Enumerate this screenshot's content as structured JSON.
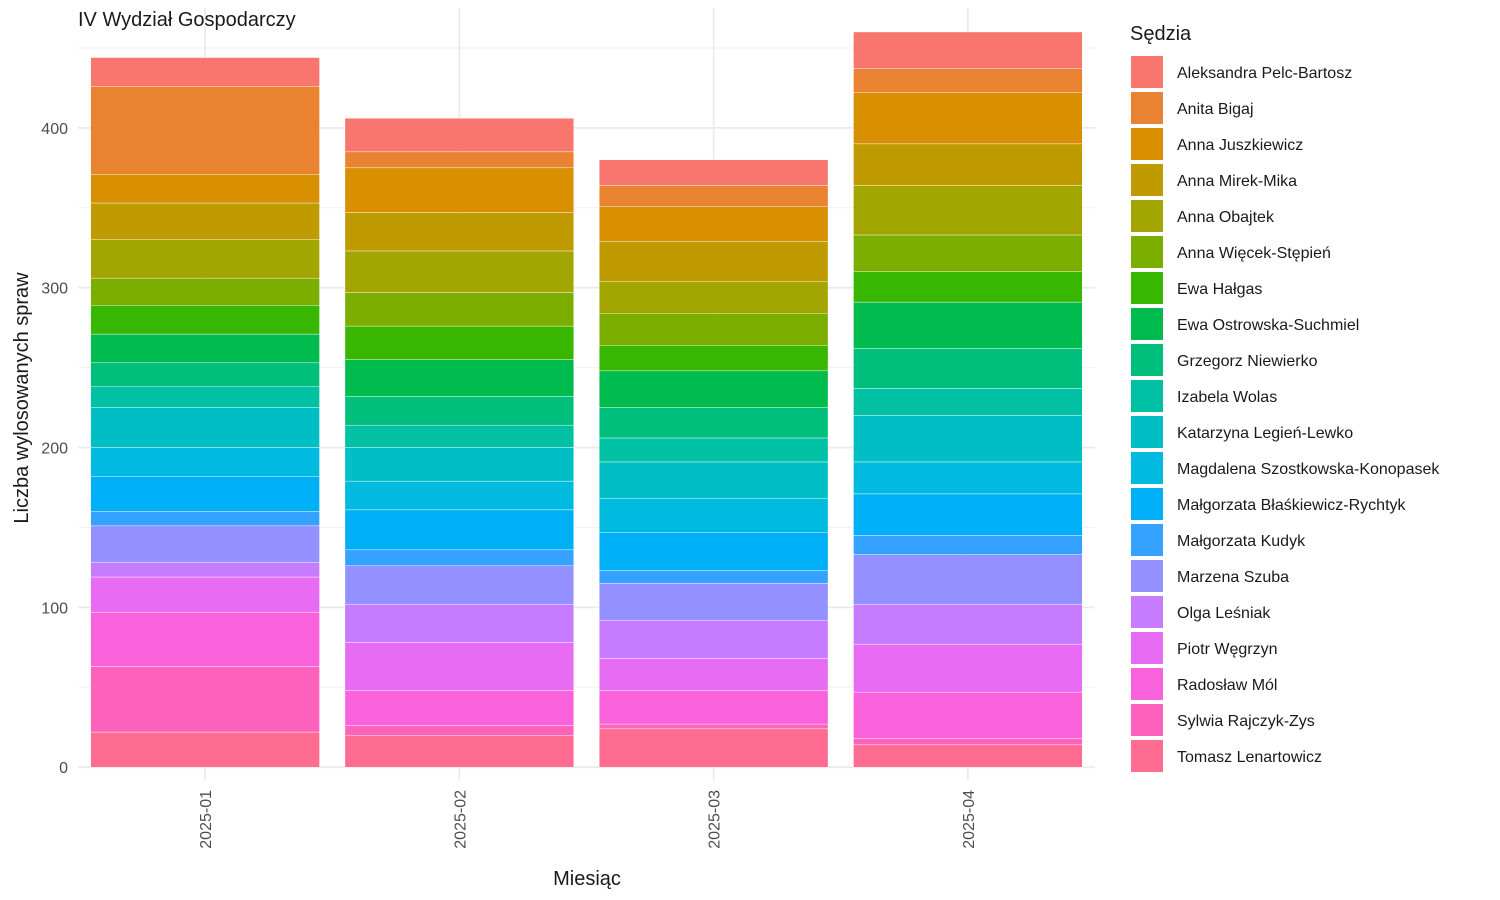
{
  "chart_data": {
    "type": "bar",
    "stacked": true,
    "title": "IV Wydział Gospodarczy",
    "xlabel": "Miesiąc",
    "ylabel": "Liczba wylosowanych spraw",
    "categories": [
      "2025-01",
      "2025-02",
      "2025-03",
      "2025-04"
    ],
    "yticks": [
      0,
      100,
      200,
      300,
      400
    ],
    "ylim": [
      -8,
      475
    ],
    "grid": true,
    "legend_title": "Sędzia",
    "legend_position": "right",
    "series": [
      {
        "name": "Aleksandra Pelc-Bartosz",
        "color": "#F8766D",
        "values": [
          18,
          21,
          16,
          23
        ]
      },
      {
        "name": "Anita Bigaj",
        "color": "#EA8331",
        "values": [
          55,
          10,
          13,
          15
        ]
      },
      {
        "name": "Anna Juszkiewicz",
        "color": "#D89000",
        "values": [
          18,
          28,
          22,
          32
        ]
      },
      {
        "name": "Anna Mirek-Mika",
        "color": "#C09B00",
        "values": [
          23,
          24,
          25,
          26
        ]
      },
      {
        "name": "Anna Obajtek",
        "color": "#A3A500",
        "values": [
          24,
          26,
          20,
          31
        ]
      },
      {
        "name": "Anna Więcek-Stępień",
        "color": "#7CAE00",
        "values": [
          17,
          21,
          20,
          23
        ]
      },
      {
        "name": "Ewa Hałgas",
        "color": "#39B600",
        "values": [
          18,
          21,
          16,
          19
        ]
      },
      {
        "name": "Ewa Ostrowska-Suchmiel",
        "color": "#00BB4E",
        "values": [
          18,
          23,
          23,
          29
        ]
      },
      {
        "name": "Grzegorz Niewierko",
        "color": "#00BF7D",
        "values": [
          15,
          18,
          19,
          25
        ]
      },
      {
        "name": "Izabela Wolas",
        "color": "#00C1A3",
        "values": [
          13,
          14,
          15,
          17
        ]
      },
      {
        "name": "Katarzyna Legień-Lewko",
        "color": "#00BFC4",
        "values": [
          25,
          21,
          23,
          29
        ]
      },
      {
        "name": "Magdalena Szostkowska-Konopasek",
        "color": "#00BAE0",
        "values": [
          18,
          18,
          21,
          20
        ]
      },
      {
        "name": "Małgorzata Błaśkiewicz-Rychtyk",
        "color": "#00B0F6",
        "values": [
          22,
          25,
          24,
          26
        ]
      },
      {
        "name": "Małgorzata Kudyk",
        "color": "#35A2FF",
        "values": [
          9,
          10,
          8,
          12
        ]
      },
      {
        "name": "Marzena Szuba",
        "color": "#9590FF",
        "values": [
          23,
          24,
          23,
          31
        ]
      },
      {
        "name": "Olga Leśniak",
        "color": "#C77CFF",
        "values": [
          9,
          24,
          24,
          25
        ]
      },
      {
        "name": "Piotr Węgrzyn",
        "color": "#E76BF3",
        "values": [
          22,
          30,
          20,
          30
        ]
      },
      {
        "name": "Radosław Mól",
        "color": "#FA62DB",
        "values": [
          34,
          22,
          21,
          29
        ]
      },
      {
        "name": "Sylwia Rajczyk-Zys",
        "color": "#FF62BC",
        "values": [
          41,
          6,
          3,
          4
        ]
      },
      {
        "name": "Tomasz Lenartowicz",
        "color": "#FF6C91",
        "values": [
          22,
          20,
          24,
          14
        ]
      }
    ]
  }
}
